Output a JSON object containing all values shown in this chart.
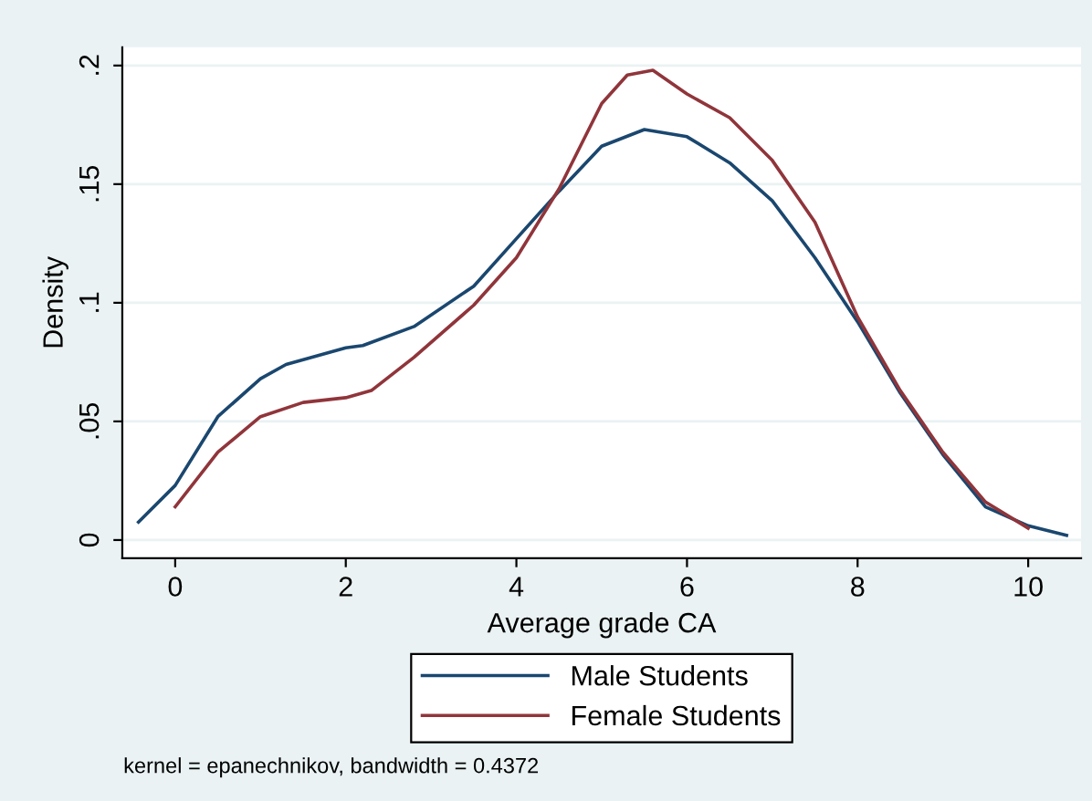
{
  "chart_data": {
    "type": "line",
    "xlabel": "Average grade CA",
    "ylabel": "Density",
    "xlim": [
      -0.62,
      10.62
    ],
    "ylim": [
      -0.0077,
      0.2077
    ],
    "xticks": [
      0,
      2,
      4,
      6,
      8,
      10
    ],
    "yticks": [
      {
        "value": 0,
        "label": "0"
      },
      {
        "value": 0.05,
        "label": ".05"
      },
      {
        "value": 0.1,
        "label": ".1"
      },
      {
        "value": 0.15,
        "label": ".15"
      },
      {
        "value": 0.2,
        "label": ".2"
      }
    ],
    "grid": "y",
    "legend": "bottom",
    "marker": "none",
    "line_style": "solid",
    "annotations": [
      "kernel = epanechnikov, bandwidth = 0.4372"
    ],
    "series": [
      {
        "name": "Male Students",
        "color": "#1a476f",
        "x": [
          -0.43,
          0,
          0.5,
          1,
          1.3,
          2,
          2.2,
          2.8,
          3.5,
          4,
          4.5,
          5,
          5.5,
          6,
          6.5,
          7,
          7.5,
          8,
          8.5,
          9,
          9.5,
          10,
          10.45
        ],
        "values": [
          0.0076,
          0.023,
          0.052,
          0.068,
          0.074,
          0.081,
          0.082,
          0.09,
          0.107,
          0.127,
          0.147,
          0.166,
          0.173,
          0.17,
          0.159,
          0.143,
          0.119,
          0.092,
          0.062,
          0.036,
          0.014,
          0.006,
          0.002
        ]
      },
      {
        "name": "Female Students",
        "color": "#90353b",
        "x": [
          0,
          0.5,
          1,
          1.5,
          2,
          2.3,
          2.8,
          3.5,
          4,
          4.5,
          5,
          5.3,
          5.6,
          6,
          6.5,
          7,
          7.5,
          8,
          8.5,
          9,
          9.5,
          10
        ],
        "values": [
          0.014,
          0.037,
          0.052,
          0.058,
          0.06,
          0.063,
          0.077,
          0.099,
          0.119,
          0.148,
          0.184,
          0.196,
          0.198,
          0.188,
          0.178,
          0.16,
          0.134,
          0.094,
          0.063,
          0.037,
          0.016,
          0.005
        ]
      }
    ]
  }
}
